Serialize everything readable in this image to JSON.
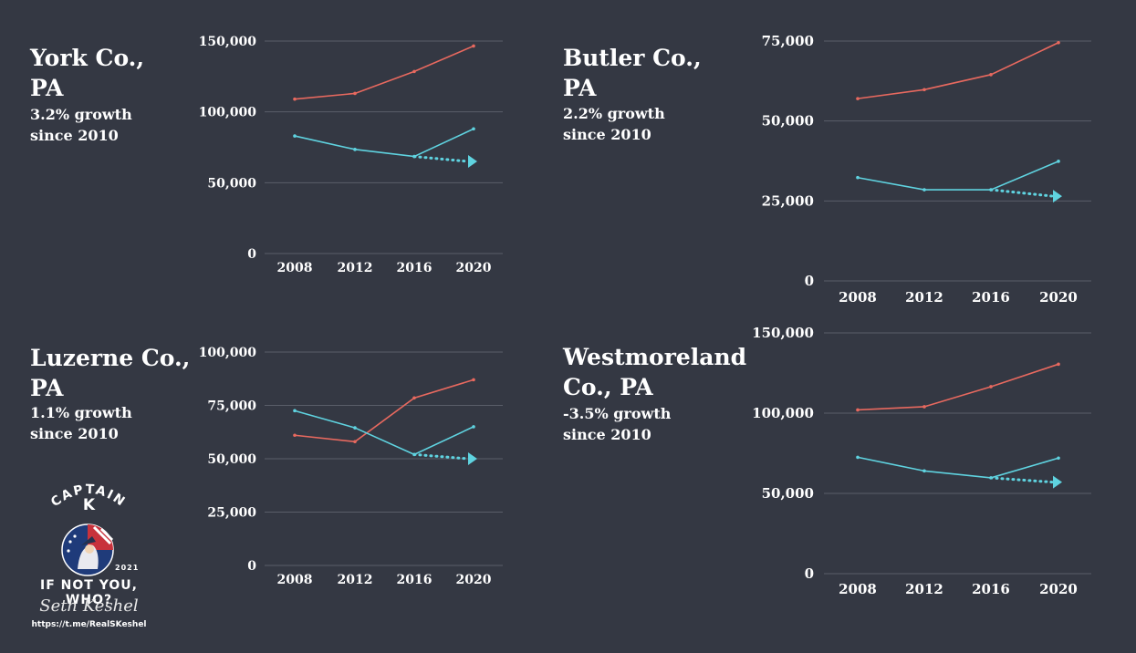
{
  "panels": [
    {
      "title_line1": "York Co.,",
      "title_line2": "PA",
      "subtitle_line1": "3.2% growth",
      "subtitle_line2": "since 2010"
    },
    {
      "title_line1": "Butler Co.,",
      "title_line2": "PA",
      "subtitle_line1": "2.2% growth",
      "subtitle_line2": "since 2010"
    },
    {
      "title_line1": "Luzerne Co.,",
      "title_line2": "PA",
      "subtitle_line1": "1.1% growth",
      "subtitle_line2": "since 2010"
    },
    {
      "title_line1": "Westmoreland",
      "title_line2": "Co., PA",
      "subtitle_line1": "-3.5% growth",
      "subtitle_line2": "since 2010"
    }
  ],
  "colors": {
    "background": "#343843",
    "red_series": "#e8695f",
    "cyan_series": "#5fd3e0",
    "grid": "#5a5e69"
  },
  "logo": {
    "captain": "CAPTAIN",
    "k": "K",
    "year": "2021",
    "tagline": "IF NOT YOU, WHO?",
    "signature": "Seth Keshel",
    "url": "https://t.me/RealSKeshel"
  },
  "chart_data": [
    {
      "type": "line",
      "categories": [
        "2008",
        "2012",
        "2016",
        "2020"
      ],
      "ylim": [
        0,
        150000
      ],
      "yticks": [
        0,
        50000,
        100000,
        150000
      ],
      "ytick_labels": [
        "0",
        "50,000",
        "100,000",
        "150,000"
      ],
      "grid": true,
      "series": [
        {
          "color": "red",
          "values": [
            109000,
            113000,
            128500,
            146500
          ]
        },
        {
          "color": "cyan",
          "values": [
            83000,
            73500,
            68500,
            88000
          ]
        }
      ],
      "projection": {
        "from_value": 68500,
        "to_value": 65000
      }
    },
    {
      "type": "line",
      "categories": [
        "2008",
        "2012",
        "2016",
        "2020"
      ],
      "ylim": [
        0,
        75000
      ],
      "yticks": [
        0,
        25000,
        50000,
        75000
      ],
      "ytick_labels": [
        "0",
        "25,000",
        "50,000",
        "75,000"
      ],
      "grid": true,
      "series": [
        {
          "color": "red",
          "values": [
            57000,
            59800,
            64500,
            74500
          ]
        },
        {
          "color": "cyan",
          "values": [
            32300,
            28500,
            28500,
            37400
          ]
        }
      ],
      "projection": {
        "from_value": 28500,
        "to_value": 26500
      }
    },
    {
      "type": "line",
      "categories": [
        "2008",
        "2012",
        "2016",
        "2020"
      ],
      "ylim": [
        0,
        100000
      ],
      "yticks": [
        0,
        25000,
        50000,
        75000,
        100000
      ],
      "ytick_labels": [
        "0",
        "25,000",
        "50,000",
        "75,000",
        "100,000"
      ],
      "grid": true,
      "series": [
        {
          "color": "red",
          "values": [
            61000,
            58000,
            78500,
            87000
          ]
        },
        {
          "color": "cyan",
          "values": [
            72500,
            64500,
            52000,
            65000
          ]
        }
      ],
      "projection": {
        "from_value": 52000,
        "to_value": 50000
      }
    },
    {
      "type": "line",
      "categories": [
        "2008",
        "2012",
        "2016",
        "2020"
      ],
      "ylim": [
        0,
        150000
      ],
      "yticks": [
        0,
        50000,
        100000,
        150000
      ],
      "ytick_labels": [
        "0",
        "50,000",
        "100,000",
        "150,000"
      ],
      "grid": true,
      "series": [
        {
          "color": "red",
          "values": [
            102000,
            104000,
            116500,
            130500
          ]
        },
        {
          "color": "cyan",
          "values": [
            72500,
            64000,
            59700,
            72000
          ]
        }
      ],
      "projection": {
        "from_value": 59700,
        "to_value": 57000
      }
    }
  ]
}
